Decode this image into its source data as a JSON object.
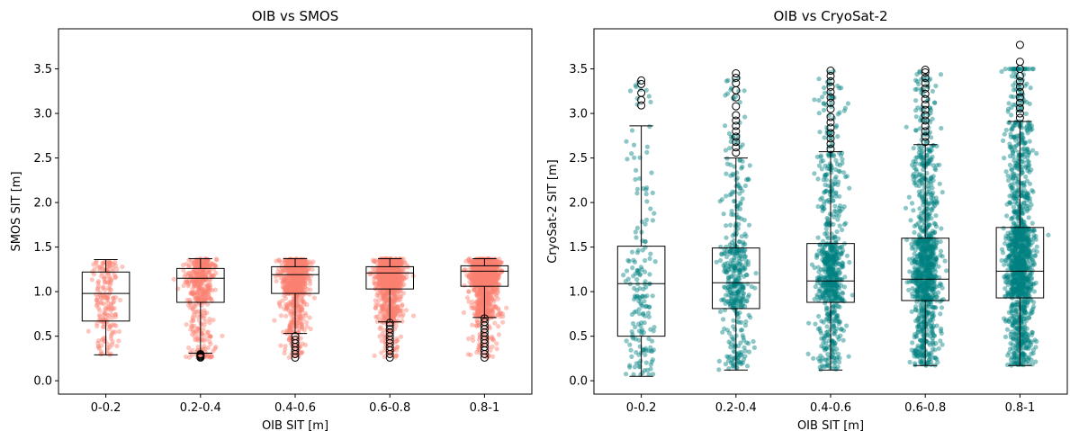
{
  "chart_data": [
    {
      "type": "box",
      "title": "OIB vs SMOS",
      "xlabel": "OIB SIT [m]",
      "ylabel": "SMOS SIT [m]",
      "ylim": [
        -0.15,
        3.95
      ],
      "yticks": [
        "0.0",
        "0.5",
        "1.0",
        "1.5",
        "2.0",
        "2.5",
        "3.0",
        "3.5"
      ],
      "categories": [
        "0-0.2",
        "0.2-0.4",
        "0.4-0.6",
        "0.6-0.8",
        "0.8-1"
      ],
      "point_color": "#fa8072",
      "grid": false,
      "boxes": [
        {
          "category": "0-0.2",
          "whisker_low": 0.29,
          "q1": 0.67,
          "median": 0.98,
          "q3": 1.22,
          "whisker_high": 1.36,
          "outliers": []
        },
        {
          "category": "0.2-0.4",
          "whisker_low": 0.31,
          "q1": 0.88,
          "median": 1.15,
          "q3": 1.26,
          "whisker_high": 1.37,
          "outliers": [
            0.26,
            0.27,
            0.28,
            0.29,
            0.3
          ]
        },
        {
          "category": "0.4-0.6",
          "whisker_low": 0.53,
          "q1": 0.98,
          "median": 1.19,
          "q3": 1.28,
          "whisker_high": 1.37,
          "outliers": [
            0.26,
            0.3,
            0.34,
            0.38,
            0.42,
            0.46,
            0.5
          ]
        },
        {
          "category": "0.6-0.8",
          "whisker_low": 0.66,
          "q1": 1.03,
          "median": 1.21,
          "q3": 1.28,
          "whisker_high": 1.37,
          "outliers": [
            0.26,
            0.3,
            0.34,
            0.38,
            0.42,
            0.46,
            0.5,
            0.54,
            0.58,
            0.62,
            0.65
          ]
        },
        {
          "category": "0.8-1",
          "whisker_low": 0.71,
          "q1": 1.06,
          "median": 1.23,
          "q3": 1.29,
          "whisker_high": 1.37,
          "outliers": [
            0.26,
            0.3,
            0.34,
            0.38,
            0.42,
            0.46,
            0.5,
            0.54,
            0.58,
            0.62,
            0.66,
            0.7
          ]
        }
      ]
    },
    {
      "type": "box",
      "title": "OIB vs CryoSat-2",
      "xlabel": "OIB SIT [m]",
      "ylabel": "CryoSat-2 SIT [m]",
      "ylim": [
        -0.15,
        3.95
      ],
      "yticks": [
        "0.0",
        "0.5",
        "1.0",
        "1.5",
        "2.0",
        "2.5",
        "3.0",
        "3.5"
      ],
      "categories": [
        "0-0.2",
        "0.2-0.4",
        "0.4-0.6",
        "0.6-0.8",
        "0.8-1"
      ],
      "point_color": "#008080",
      "grid": false,
      "boxes": [
        {
          "category": "0-0.2",
          "whisker_low": 0.05,
          "q1": 0.5,
          "median": 1.09,
          "q3": 1.51,
          "whisker_high": 2.86,
          "outliers": [
            3.09,
            3.15,
            3.23,
            3.33,
            3.37
          ]
        },
        {
          "category": "0.2-0.4",
          "whisker_low": 0.12,
          "q1": 0.81,
          "median": 1.1,
          "q3": 1.49,
          "whisker_high": 2.5,
          "outliers": [
            2.56,
            2.62,
            2.68,
            2.74,
            2.8,
            2.86,
            2.92,
            2.98,
            3.08,
            3.18,
            3.26,
            3.34,
            3.4,
            3.45
          ]
        },
        {
          "category": "0.4-0.6",
          "whisker_low": 0.12,
          "q1": 0.88,
          "median": 1.12,
          "q3": 1.54,
          "whisker_high": 2.57,
          "outliers": [
            2.6,
            2.66,
            2.72,
            2.78,
            2.84,
            2.9,
            2.96,
            3.05,
            3.12,
            3.18,
            3.24,
            3.3,
            3.36,
            3.42,
            3.48
          ]
        },
        {
          "category": "0.6-0.8",
          "whisker_low": 0.17,
          "q1": 0.9,
          "median": 1.14,
          "q3": 1.6,
          "whisker_high": 2.65,
          "outliers": [
            2.68,
            2.74,
            2.8,
            2.86,
            2.92,
            2.98,
            3.04,
            3.1,
            3.16,
            3.22,
            3.28,
            3.34,
            3.4,
            3.46,
            3.49
          ]
        },
        {
          "category": "0.8-1",
          "whisker_low": 0.17,
          "q1": 0.93,
          "median": 1.23,
          "q3": 1.72,
          "whisker_high": 2.91,
          "outliers": [
            2.95,
            3.0,
            3.06,
            3.12,
            3.18,
            3.24,
            3.3,
            3.36,
            3.42,
            3.5,
            3.58,
            3.77
          ]
        }
      ]
    }
  ]
}
